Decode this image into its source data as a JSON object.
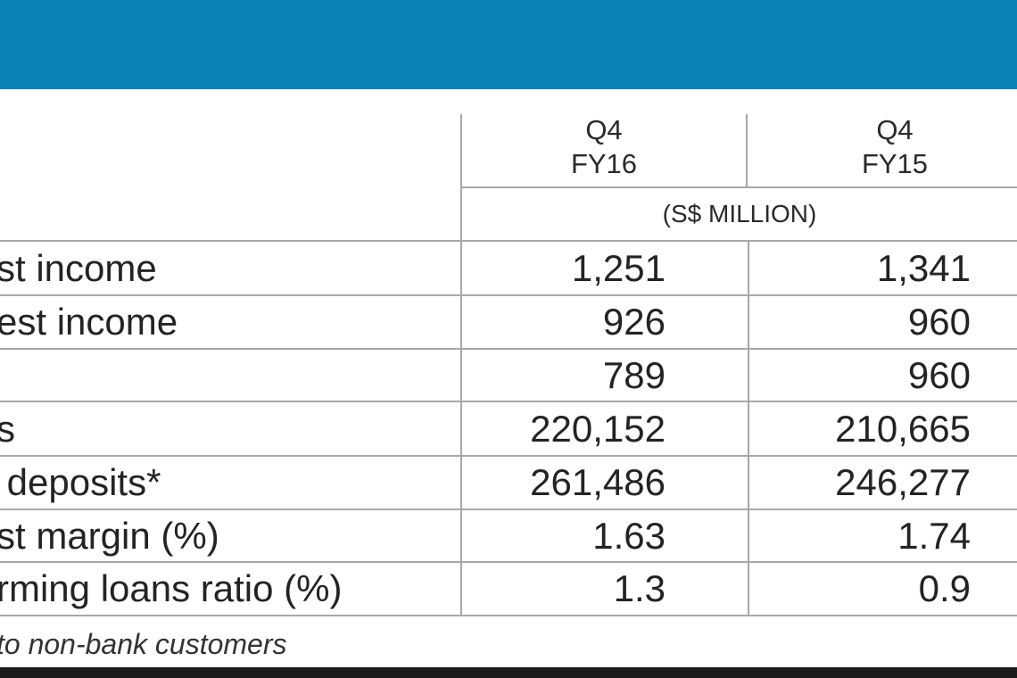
{
  "table": {
    "columns": [
      {
        "line1": "Q4",
        "line2": "FY16"
      },
      {
        "line1": "Q4",
        "line2": "FY15"
      }
    ],
    "unit": "(S$ MILLION)",
    "rows": [
      {
        "label": "st income",
        "fy16": "1,251",
        "fy15": "1,341"
      },
      {
        "label": "est income",
        "fy16": "926",
        "fy15": "960"
      },
      {
        "label": "",
        "fy16": "789",
        "fy15": "960"
      },
      {
        "label": "s",
        "fy16": "220,152",
        "fy15": "210,665"
      },
      {
        "label": " deposits*",
        "fy16": "261,486",
        "fy15": "246,277"
      },
      {
        "label": "st margin (%)",
        "fy16": "1.63",
        "fy15": "1.74"
      },
      {
        "label": "rming loans ratio (%)",
        "fy16": "1.3",
        "fy15": "0.9"
      }
    ]
  },
  "footnote": "to non-bank customers",
  "colors": {
    "banner": "#0a82b6",
    "gridline": "#a8a8a8",
    "bottom_bar": "#1a1a1a"
  }
}
